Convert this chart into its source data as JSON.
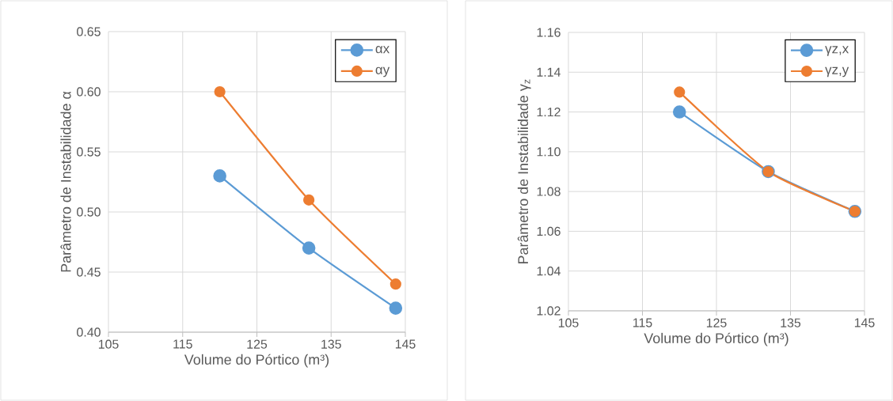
{
  "chart_data": [
    {
      "type": "line",
      "xlabel": "Volume do Pórtico (m³)",
      "ylabel": "Parâmetro de Instabilidade α",
      "x": [
        120,
        132,
        143.7
      ],
      "series": [
        {
          "name": "αx",
          "color": "#5b9bd5",
          "values": [
            0.53,
            0.47,
            0.42
          ]
        },
        {
          "name": "αy",
          "color": "#ed7d31",
          "values": [
            0.6,
            0.51,
            0.44
          ]
        }
      ],
      "xlim": [
        105,
        145
      ],
      "xticks": [
        105,
        115,
        125,
        135,
        145
      ],
      "ylim": [
        0.4,
        0.65
      ],
      "yticks": [
        {
          "value": 0.4,
          "label": "0.40"
        },
        {
          "value": 0.45,
          "label": "0.45"
        },
        {
          "value": 0.5,
          "label": "0.50"
        },
        {
          "value": 0.55,
          "label": "0.55"
        },
        {
          "value": 0.6,
          "label": "0.60"
        },
        {
          "value": 0.65,
          "label": "0.65"
        }
      ],
      "grid": true,
      "legend": "top right",
      "marker": "circle",
      "line_style": "solid"
    },
    {
      "type": "line",
      "xlabel": "Volume do Pórtico (m³)",
      "ylabel": "Parâmetro de Instabilidade γ$_{z}$",
      "x": [
        120,
        132,
        143.7
      ],
      "series": [
        {
          "name": "γz,x",
          "color": "#5b9bd5",
          "values": [
            1.12,
            1.09,
            1.07
          ]
        },
        {
          "name": "γz,y",
          "color": "#ed7d31",
          "values": [
            1.13,
            1.09,
            1.07
          ]
        }
      ],
      "xlim": [
        105,
        145
      ],
      "xticks": [
        105,
        115,
        125,
        135,
        145
      ],
      "ylim": [
        1.02,
        1.16
      ],
      "yticks": [
        {
          "value": 1.02,
          "label": "1.02"
        },
        {
          "value": 1.04,
          "label": "1.04"
        },
        {
          "value": 1.06,
          "label": "1.06"
        },
        {
          "value": 1.08,
          "label": "1.08"
        },
        {
          "value": 1.1,
          "label": "1.10"
        },
        {
          "value": 1.12,
          "label": "1.12"
        },
        {
          "value": 1.14,
          "label": "1.14"
        },
        {
          "value": 1.16,
          "label": "1.16"
        }
      ],
      "grid": true,
      "legend": "top right",
      "marker": "circle",
      "line_style": "solid"
    }
  ]
}
